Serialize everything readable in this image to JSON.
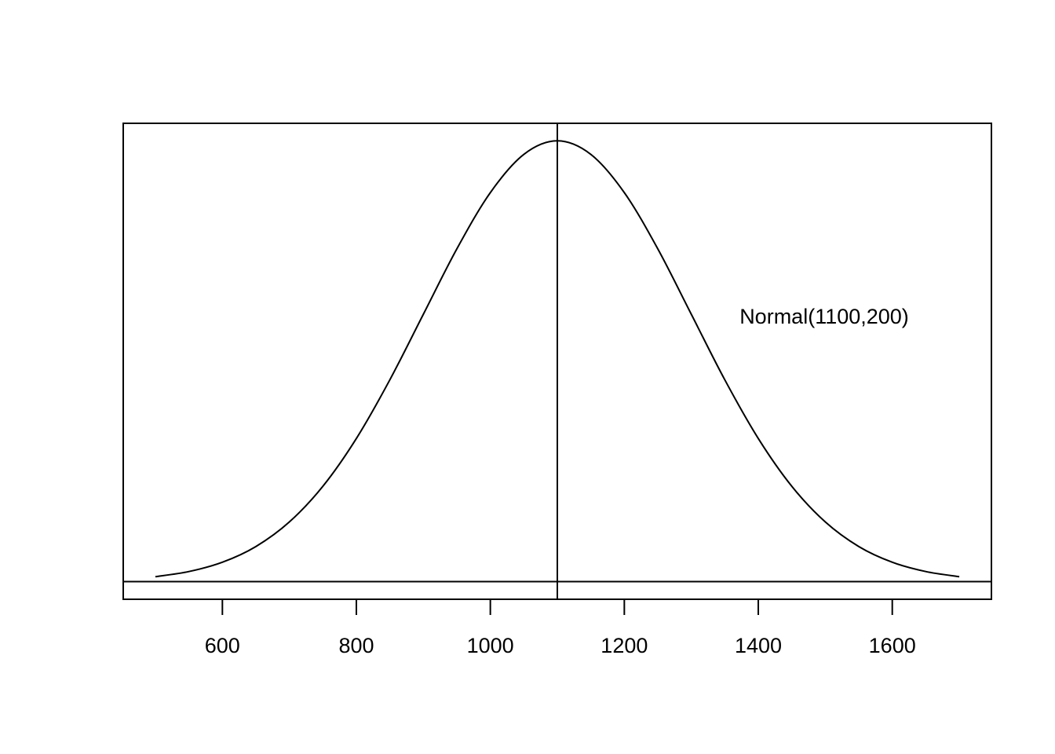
{
  "chart_data": {
    "type": "line",
    "annotation": "Normal(1100,200)",
    "x": [
      500,
      550,
      600,
      650,
      700,
      750,
      800,
      850,
      900,
      950,
      1000,
      1050,
      1100,
      1150,
      1200,
      1250,
      1300,
      1350,
      1400,
      1450,
      1500,
      1550,
      1600,
      1650,
      1700
    ],
    "values": [
      2.22e-05,
      4.55e-05,
      8.76e-05,
      0.0001587,
      0.00027,
      0.0004314,
      0.0006476,
      0.0009132,
      0.0012098,
      0.0015057,
      0.0017603,
      0.0019333,
      0.0019947,
      0.0019333,
      0.0017603,
      0.0015057,
      0.0012098,
      0.0009132,
      0.0006476,
      0.0004314,
      0.00027,
      0.0001587,
      8.76e-05,
      4.55e-05,
      2.22e-05
    ],
    "color": "#000000",
    "xlim": [
      452,
      1748
    ],
    "ylim": [
      -8e-05,
      0.002074
    ],
    "xticks": [
      600,
      800,
      1000,
      1200,
      1400,
      1600
    ],
    "vline": 1100,
    "hline": 0
  }
}
